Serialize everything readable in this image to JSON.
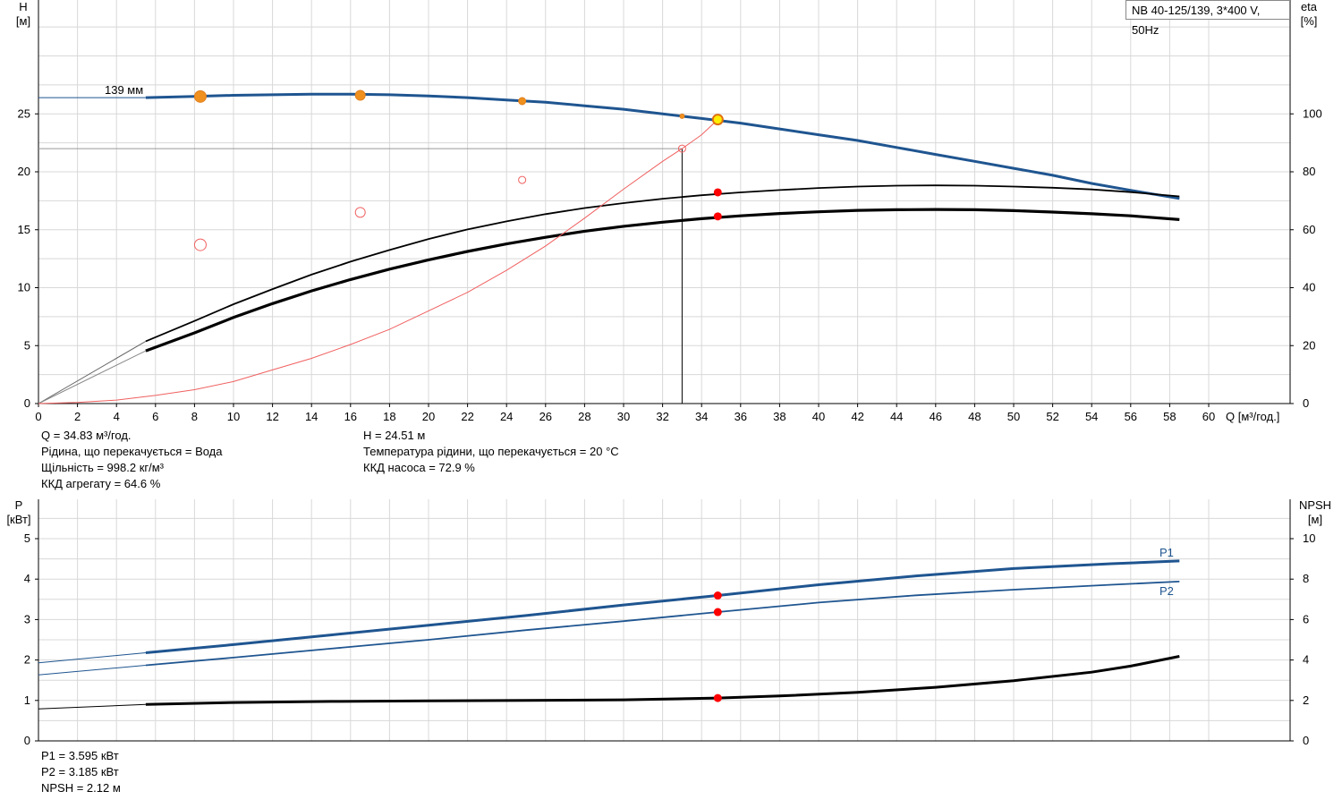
{
  "model_label": "NB 40-125/139, 3*400 V, 50Hz",
  "top_chart": {
    "y_left_label": "H",
    "y_left_unit": "[м]",
    "y_right_label": "eta",
    "y_right_unit": "[%]",
    "x_axis_label": "Q [м³/год.]",
    "impeller_label": "139 мм"
  },
  "bottom_chart": {
    "y_left_label": "P",
    "y_left_unit": "[кВт]",
    "y_right_label": "NPSH",
    "y_right_unit": "[м]",
    "p1_label": "P1",
    "p2_label": "P2"
  },
  "operating_info": {
    "left": [
      "Q = 34.83 м³/год.",
      "Рідина, що перекачується = Вода",
      "Щільність = 998.2 кг/м³",
      "ККД агрегату = 64.6 %"
    ],
    "right": [
      "H = 24.51 м",
      "Температура рідини, що перекачується = 20 °C",
      "ККД насоса = 72.9 %"
    ]
  },
  "bottom_info": [
    "P1 = 3.595 кВт",
    "P2 = 3.185 кВт",
    "NPSH = 2.12 м"
  ],
  "colors": {
    "pump_curve": "#1f5590",
    "eta_curve": "#000000",
    "system_curve": "#f06060",
    "duty_point": "#ff0000",
    "marker_orange": "#f0901e",
    "grid": "#d8d8d8"
  },
  "chart_data": [
    {
      "type": "line",
      "x_label": "Q [м³/год.]",
      "xlim": [
        0,
        64
      ],
      "x_ticks": [
        0,
        2,
        4,
        6,
        8,
        10,
        12,
        14,
        16,
        18,
        20,
        22,
        24,
        26,
        28,
        30,
        32,
        34,
        36,
        38,
        40,
        42,
        44,
        46,
        48,
        50,
        52,
        54,
        56,
        58,
        60
      ],
      "y_left": {
        "label": "H",
        "unit": "[м]",
        "ylim": [
          0,
          35
        ],
        "ticks": [
          0,
          5,
          10,
          15,
          20,
          25
        ]
      },
      "y_right": {
        "label": "eta",
        "unit": "[%]",
        "ylim": [
          0,
          140
        ],
        "ticks": [
          0,
          20,
          40,
          60,
          80,
          100
        ]
      },
      "series": [
        {
          "axis": "left",
          "style": "pump",
          "x": [
            5.5,
            8,
            10,
            12,
            14,
            16,
            18,
            20,
            22,
            24,
            26,
            28,
            30,
            32,
            34,
            36,
            38,
            40,
            42,
            44,
            46,
            48,
            50,
            52,
            54,
            56,
            58.5
          ],
          "y": [
            26.4,
            26.5,
            26.6,
            26.65,
            26.7,
            26.7,
            26.65,
            26.55,
            26.4,
            26.2,
            26.0,
            25.7,
            25.4,
            25.0,
            24.6,
            24.2,
            23.7,
            23.2,
            22.7,
            22.1,
            21.5,
            20.9,
            20.3,
            19.7,
            19.0,
            18.4,
            17.7
          ]
        },
        {
          "axis": "left",
          "style": "pump_ext",
          "x": [
            0,
            5.5
          ],
          "y": [
            26.4,
            26.4
          ]
        },
        {
          "axis": "right",
          "style": "eta_thin",
          "x": [
            5.5,
            8,
            10,
            12,
            14,
            16,
            18,
            20,
            22,
            24,
            26,
            28,
            30,
            32,
            34,
            36,
            38,
            40,
            42,
            44,
            46,
            48,
            50,
            52,
            54,
            56,
            58.5
          ],
          "y": [
            21.5,
            28.5,
            34.3,
            39.5,
            44.5,
            49,
            53,
            56.8,
            60.1,
            62.9,
            65.4,
            67.5,
            69.2,
            70.7,
            71.9,
            72.9,
            73.7,
            74.4,
            74.9,
            75.2,
            75.3,
            75.2,
            74.9,
            74.5,
            73.9,
            73.0,
            71.5
          ]
        },
        {
          "axis": "right",
          "style": "eta_ext_thin",
          "x": [
            0,
            5.5
          ],
          "y": [
            0,
            21.5
          ]
        },
        {
          "axis": "right",
          "style": "eta_thick",
          "x": [
            5.5,
            8,
            10,
            12,
            14,
            16,
            18,
            20,
            22,
            24,
            26,
            28,
            30,
            32,
            34,
            36,
            38,
            40,
            42,
            44,
            46,
            48,
            50,
            52,
            54,
            56,
            58.5
          ],
          "y": [
            18.2,
            24.4,
            29.7,
            34.5,
            38.9,
            42.8,
            46.4,
            49.6,
            52.5,
            55.1,
            57.4,
            59.5,
            61.2,
            62.6,
            63.8,
            64.8,
            65.6,
            66.2,
            66.7,
            66.9,
            67.0,
            66.9,
            66.6,
            66.1,
            65.5,
            64.8,
            63.5
          ]
        },
        {
          "axis": "right",
          "style": "eta_ext_thick",
          "x": [
            0,
            5.5
          ],
          "y": [
            0,
            18.2
          ]
        },
        {
          "axis": "left",
          "style": "system",
          "x": [
            0,
            2,
            4,
            6,
            8,
            10,
            12,
            14,
            16,
            18,
            20,
            22,
            24,
            26,
            28,
            30,
            32,
            33,
            34,
            34.83
          ],
          "y": [
            0,
            0.1,
            0.3,
            0.7,
            1.2,
            1.9,
            2.9,
            3.9,
            5.1,
            6.4,
            8.0,
            9.6,
            11.5,
            13.6,
            16.0,
            18.5,
            20.9,
            22.0,
            23.2,
            24.51
          ]
        }
      ],
      "duty_point": {
        "Q": 34.83,
        "H": 24.51,
        "eta_pump": 72.9,
        "eta_unit": 64.6
      },
      "reference_lines": {
        "h_line_H": 22.0,
        "v_line_Q": 33.0
      },
      "markers": [
        {
          "x": 8.3,
          "y": 26.5,
          "r": "large",
          "kind": "filled"
        },
        {
          "x": 16.5,
          "y": 26.6,
          "r": "medium",
          "kind": "filled"
        },
        {
          "x": 24.8,
          "y": 26.1,
          "r": "small",
          "kind": "filled"
        },
        {
          "x": 33.0,
          "y": 24.8,
          "r": "tiny",
          "kind": "filled"
        },
        {
          "x": 8.3,
          "y": 13.7,
          "r": "large",
          "kind": "hollow"
        },
        {
          "x": 16.5,
          "y": 16.5,
          "r": "medium",
          "kind": "hollow"
        },
        {
          "x": 24.8,
          "y": 19.3,
          "r": "small",
          "kind": "hollow"
        },
        {
          "x": 33.0,
          "y": 22.0,
          "r": "small",
          "kind": "hollow"
        }
      ]
    },
    {
      "type": "line",
      "x_label": "Q [м³/год.]",
      "xlim": [
        0,
        64
      ],
      "y_left": {
        "label": "P",
        "unit": "[кВт]",
        "ylim": [
          0,
          5.5
        ],
        "ticks": [
          0,
          1,
          2,
          3,
          4,
          5
        ]
      },
      "y_right": {
        "label": "NPSH",
        "unit": "[м]",
        "ylim": [
          0,
          11
        ],
        "ticks": [
          0,
          2,
          4,
          6,
          8,
          10
        ]
      },
      "series": [
        {
          "name": "P1",
          "axis": "left",
          "style": "p1",
          "x": [
            5.5,
            10,
            15,
            20,
            25,
            30,
            34.83,
            40,
            45,
            50,
            55,
            58.5
          ],
          "y": [
            2.18,
            2.38,
            2.62,
            2.86,
            3.1,
            3.36,
            3.595,
            3.86,
            4.08,
            4.26,
            4.38,
            4.45
          ]
        },
        {
          "axis": "left",
          "style": "p1_ext",
          "x": [
            0,
            5.5
          ],
          "y": [
            1.93,
            2.18
          ]
        },
        {
          "name": "P2",
          "axis": "left",
          "style": "p2",
          "x": [
            5.5,
            10,
            15,
            20,
            25,
            30,
            34.83,
            40,
            45,
            50,
            55,
            58.5
          ],
          "y": [
            1.87,
            2.06,
            2.28,
            2.5,
            2.74,
            2.96,
            3.185,
            3.42,
            3.6,
            3.74,
            3.86,
            3.94
          ]
        },
        {
          "axis": "left",
          "style": "p2_ext",
          "x": [
            0,
            5.5
          ],
          "y": [
            1.63,
            1.87
          ]
        },
        {
          "axis": "right",
          "style": "npsh",
          "x": [
            5.5,
            10,
            15,
            20,
            25,
            30,
            34.83,
            38,
            42,
            46,
            50,
            54,
            56,
            58.5
          ],
          "y": [
            1.8,
            1.9,
            1.95,
            1.98,
            2.0,
            2.03,
            2.12,
            2.22,
            2.4,
            2.65,
            2.98,
            3.4,
            3.7,
            4.18
          ]
        },
        {
          "axis": "right",
          "style": "npsh_ext",
          "x": [
            0,
            5.5
          ],
          "y": [
            1.58,
            1.8
          ]
        }
      ],
      "duty_points": [
        {
          "x": 34.83,
          "P1": 3.595,
          "P2": 3.185,
          "NPSH": 2.12
        }
      ]
    }
  ]
}
